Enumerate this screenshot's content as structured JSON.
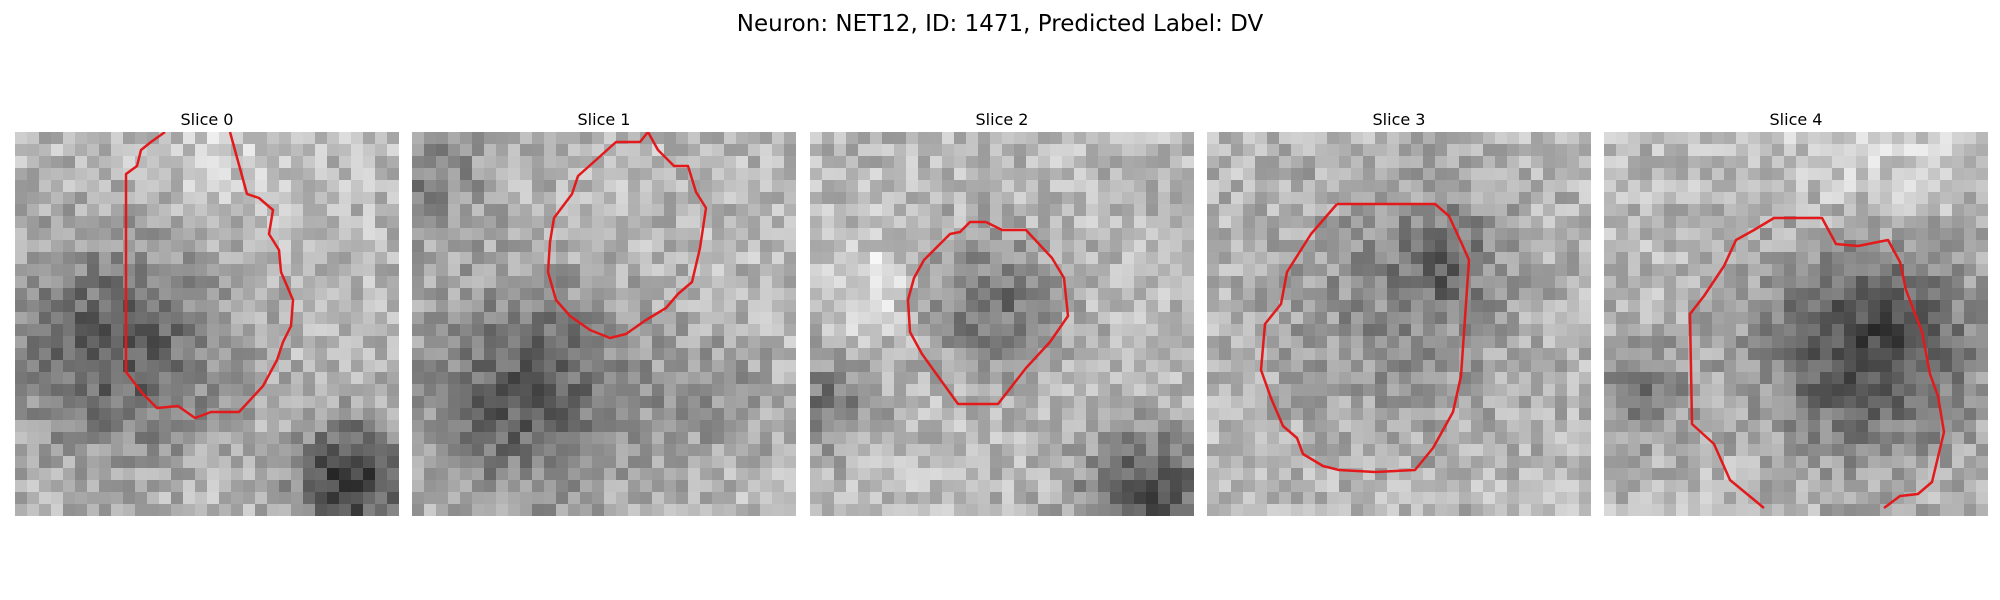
{
  "figure": {
    "title": "Neuron: NET12, ID: 1471, Predicted Label: DV",
    "contour_color": "#e31a1c"
  },
  "panels": [
    {
      "title": "Slice 0"
    },
    {
      "title": "Slice 1"
    },
    {
      "title": "Slice 2"
    },
    {
      "title": "Slice 3"
    },
    {
      "title": "Slice 4"
    }
  ]
}
